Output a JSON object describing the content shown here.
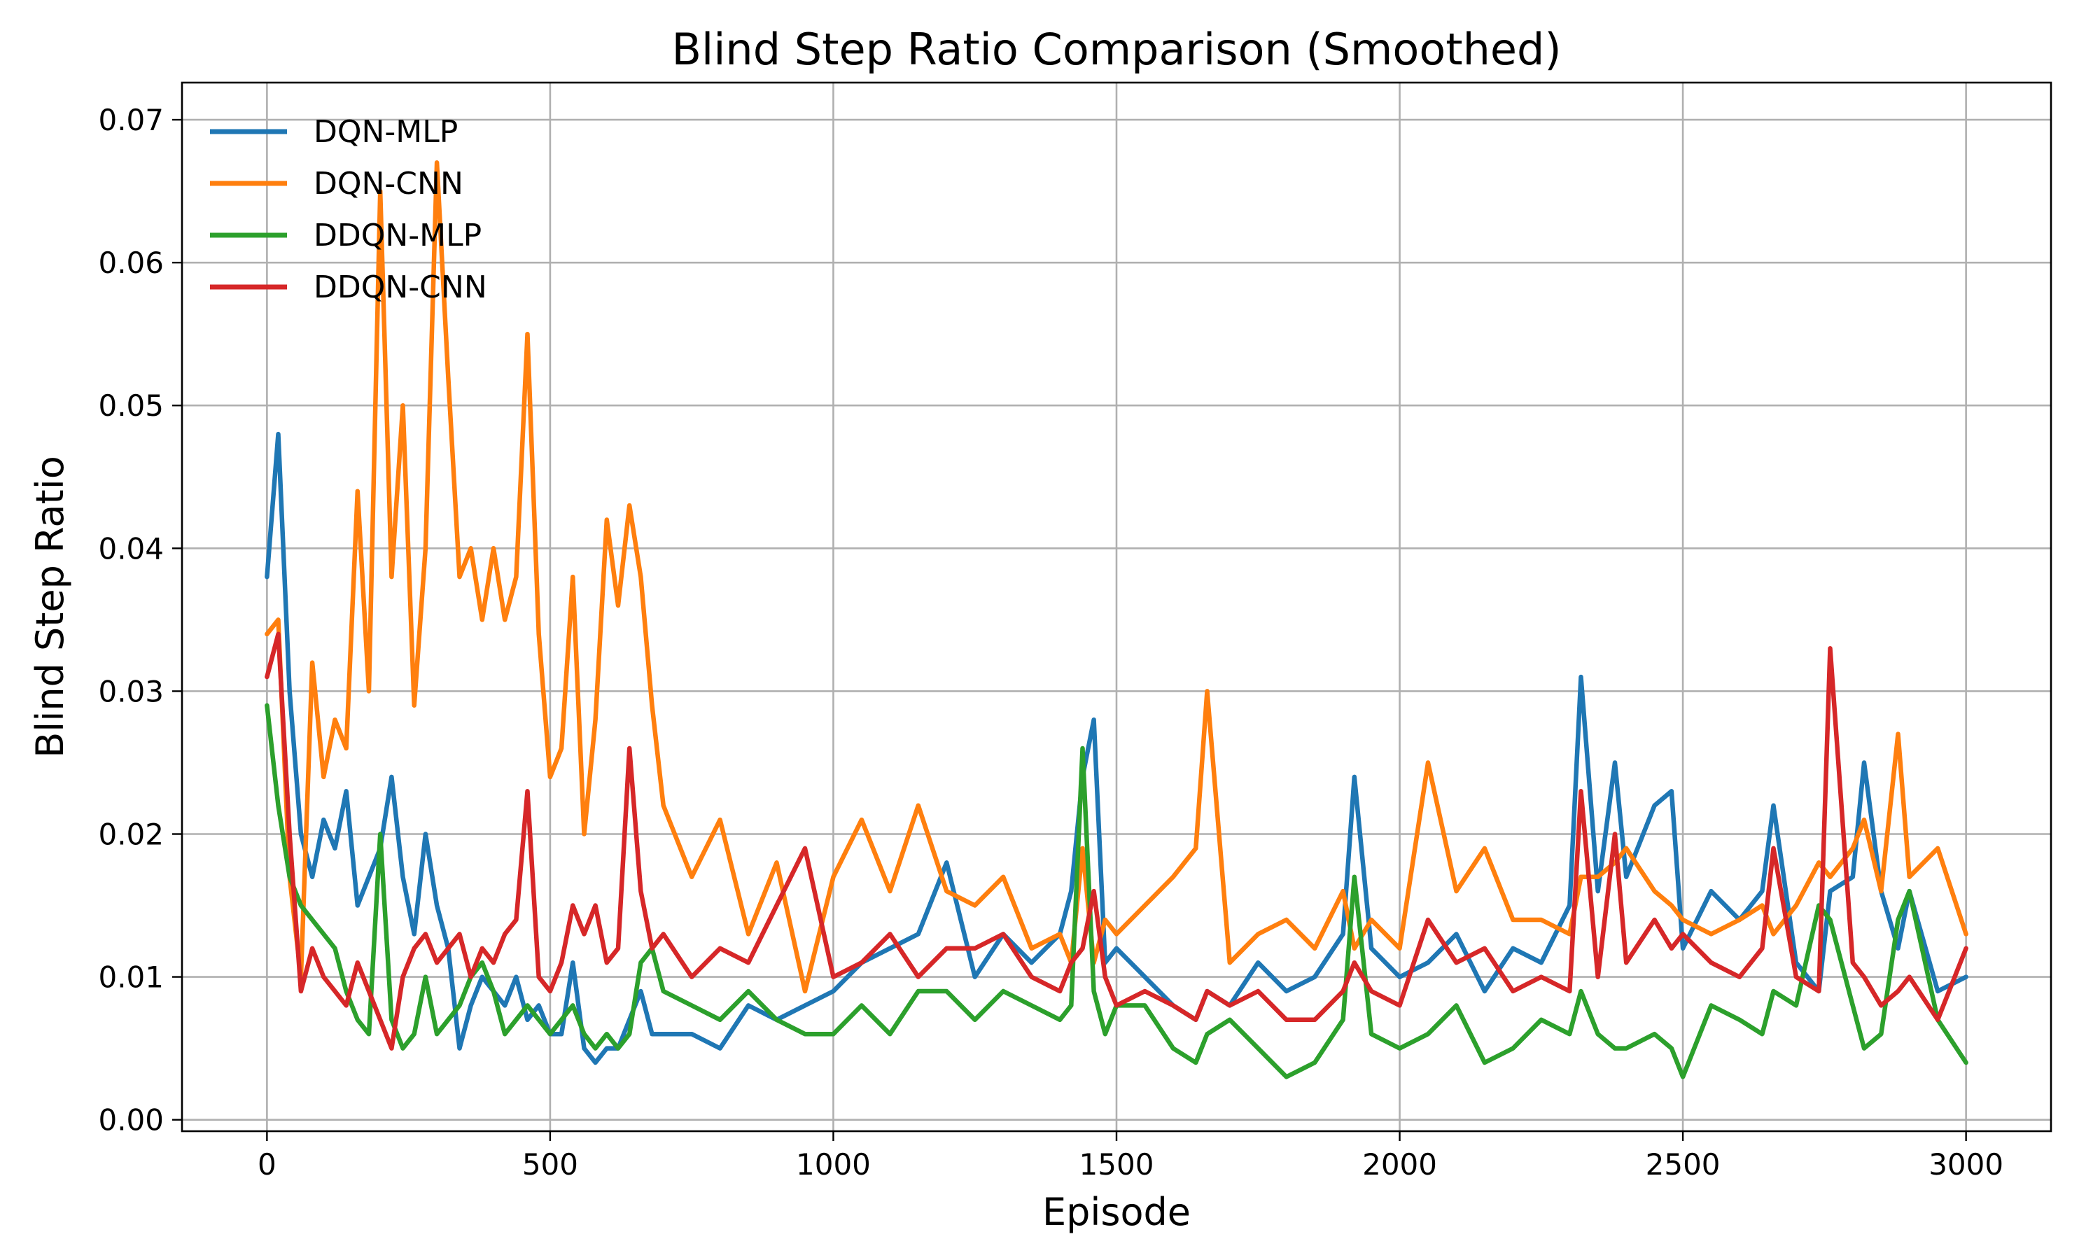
{
  "chart_data": {
    "type": "line",
    "title": "Blind Step Ratio Comparison (Smoothed)",
    "xlabel": "Episode",
    "ylabel": "Blind Step Ratio",
    "xlim": [
      -150,
      3150
    ],
    "ylim": [
      -0.0008,
      0.0726
    ],
    "x_ticks": [
      0,
      500,
      1000,
      1500,
      2000,
      2500,
      3000
    ],
    "x_tick_labels": [
      "0",
      "500",
      "1000",
      "1500",
      "2000",
      "2500",
      "3000"
    ],
    "y_ticks": [
      0.0,
      0.01,
      0.02,
      0.03,
      0.04,
      0.05,
      0.06,
      0.07
    ],
    "y_tick_labels": [
      "0.00",
      "0.01",
      "0.02",
      "0.03",
      "0.04",
      "0.05",
      "0.06",
      "0.07"
    ],
    "grid": true,
    "legend_position": "top-left",
    "x": [
      0,
      20,
      40,
      60,
      80,
      100,
      120,
      140,
      160,
      180,
      200,
      220,
      240,
      260,
      280,
      300,
      320,
      340,
      360,
      380,
      400,
      420,
      440,
      460,
      480,
      500,
      520,
      540,
      560,
      580,
      600,
      620,
      640,
      660,
      680,
      700,
      750,
      800,
      850,
      900,
      950,
      1000,
      1050,
      1100,
      1150,
      1200,
      1250,
      1300,
      1350,
      1400,
      1420,
      1440,
      1460,
      1480,
      1500,
      1550,
      1600,
      1640,
      1660,
      1700,
      1750,
      1800,
      1850,
      1900,
      1920,
      1950,
      2000,
      2050,
      2100,
      2150,
      2200,
      2250,
      2300,
      2320,
      2350,
      2380,
      2400,
      2450,
      2480,
      2500,
      2550,
      2600,
      2640,
      2660,
      2700,
      2740,
      2760,
      2800,
      2820,
      2850,
      2880,
      2900,
      2950,
      3000
    ],
    "series": [
      {
        "name": "DQN-MLP",
        "color": "#1f77b4",
        "values": [
          0.038,
          0.048,
          0.03,
          0.02,
          0.017,
          0.021,
          0.019,
          0.023,
          0.015,
          0.017,
          0.019,
          0.024,
          0.017,
          0.013,
          0.02,
          0.015,
          0.012,
          0.005,
          0.008,
          0.01,
          0.009,
          0.008,
          0.01,
          0.007,
          0.008,
          0.006,
          0.006,
          0.011,
          0.005,
          0.004,
          0.005,
          0.005,
          0.007,
          0.009,
          0.006,
          0.006,
          0.006,
          0.005,
          0.008,
          0.007,
          0.008,
          0.009,
          0.011,
          0.012,
          0.013,
          0.018,
          0.01,
          0.013,
          0.011,
          0.013,
          0.016,
          0.024,
          0.028,
          0.011,
          0.012,
          0.01,
          0.008,
          0.007,
          0.009,
          0.008,
          0.011,
          0.009,
          0.01,
          0.013,
          0.024,
          0.012,
          0.01,
          0.011,
          0.013,
          0.009,
          0.012,
          0.011,
          0.015,
          0.031,
          0.016,
          0.025,
          0.017,
          0.022,
          0.023,
          0.012,
          0.016,
          0.014,
          0.016,
          0.022,
          0.011,
          0.009,
          0.016,
          0.017,
          0.025,
          0.016,
          0.012,
          0.016,
          0.009,
          0.01
        ]
      },
      {
        "name": "DQN-CNN",
        "color": "#ff7f0e",
        "values": [
          0.034,
          0.035,
          0.017,
          0.01,
          0.032,
          0.024,
          0.028,
          0.026,
          0.044,
          0.03,
          0.065,
          0.038,
          0.05,
          0.029,
          0.04,
          0.067,
          0.052,
          0.038,
          0.04,
          0.035,
          0.04,
          0.035,
          0.038,
          0.055,
          0.034,
          0.024,
          0.026,
          0.038,
          0.02,
          0.028,
          0.042,
          0.036,
          0.043,
          0.038,
          0.029,
          0.022,
          0.017,
          0.021,
          0.013,
          0.018,
          0.009,
          0.017,
          0.021,
          0.016,
          0.022,
          0.016,
          0.015,
          0.017,
          0.012,
          0.013,
          0.011,
          0.019,
          0.011,
          0.014,
          0.013,
          0.015,
          0.017,
          0.019,
          0.03,
          0.011,
          0.013,
          0.014,
          0.012,
          0.016,
          0.012,
          0.014,
          0.012,
          0.025,
          0.016,
          0.019,
          0.014,
          0.014,
          0.013,
          0.017,
          0.017,
          0.018,
          0.019,
          0.016,
          0.015,
          0.014,
          0.013,
          0.014,
          0.015,
          0.013,
          0.015,
          0.018,
          0.017,
          0.019,
          0.021,
          0.016,
          0.027,
          0.017,
          0.019,
          0.013
        ]
      },
      {
        "name": "DDQN-MLP",
        "color": "#2ca02c",
        "values": [
          0.029,
          0.022,
          0.017,
          0.015,
          0.014,
          0.013,
          0.012,
          0.009,
          0.007,
          0.006,
          0.02,
          0.007,
          0.005,
          0.006,
          0.01,
          0.006,
          0.007,
          0.008,
          0.01,
          0.011,
          0.009,
          0.006,
          0.007,
          0.008,
          0.007,
          0.006,
          0.007,
          0.008,
          0.006,
          0.005,
          0.006,
          0.005,
          0.006,
          0.011,
          0.012,
          0.009,
          0.008,
          0.007,
          0.009,
          0.007,
          0.006,
          0.006,
          0.008,
          0.006,
          0.009,
          0.009,
          0.007,
          0.009,
          0.008,
          0.007,
          0.008,
          0.026,
          0.009,
          0.006,
          0.008,
          0.008,
          0.005,
          0.004,
          0.006,
          0.007,
          0.005,
          0.003,
          0.004,
          0.007,
          0.017,
          0.006,
          0.005,
          0.006,
          0.008,
          0.004,
          0.005,
          0.007,
          0.006,
          0.009,
          0.006,
          0.005,
          0.005,
          0.006,
          0.005,
          0.003,
          0.008,
          0.007,
          0.006,
          0.009,
          0.008,
          0.015,
          0.014,
          0.008,
          0.005,
          0.006,
          0.014,
          0.016,
          0.007,
          0.004
        ]
      },
      {
        "name": "DDQN-CNN",
        "color": "#d62728",
        "values": [
          0.031,
          0.034,
          0.02,
          0.009,
          0.012,
          0.01,
          0.009,
          0.008,
          0.011,
          0.009,
          0.007,
          0.005,
          0.01,
          0.012,
          0.013,
          0.011,
          0.012,
          0.013,
          0.01,
          0.012,
          0.011,
          0.013,
          0.014,
          0.023,
          0.01,
          0.009,
          0.011,
          0.015,
          0.013,
          0.015,
          0.011,
          0.012,
          0.026,
          0.016,
          0.012,
          0.013,
          0.01,
          0.012,
          0.011,
          0.015,
          0.019,
          0.01,
          0.011,
          0.013,
          0.01,
          0.012,
          0.012,
          0.013,
          0.01,
          0.009,
          0.011,
          0.012,
          0.016,
          0.01,
          0.008,
          0.009,
          0.008,
          0.007,
          0.009,
          0.008,
          0.009,
          0.007,
          0.007,
          0.009,
          0.011,
          0.009,
          0.008,
          0.014,
          0.011,
          0.012,
          0.009,
          0.01,
          0.009,
          0.023,
          0.01,
          0.02,
          0.011,
          0.014,
          0.012,
          0.013,
          0.011,
          0.01,
          0.012,
          0.019,
          0.01,
          0.009,
          0.033,
          0.011,
          0.01,
          0.008,
          0.009,
          0.01,
          0.007,
          0.012
        ]
      }
    ]
  }
}
